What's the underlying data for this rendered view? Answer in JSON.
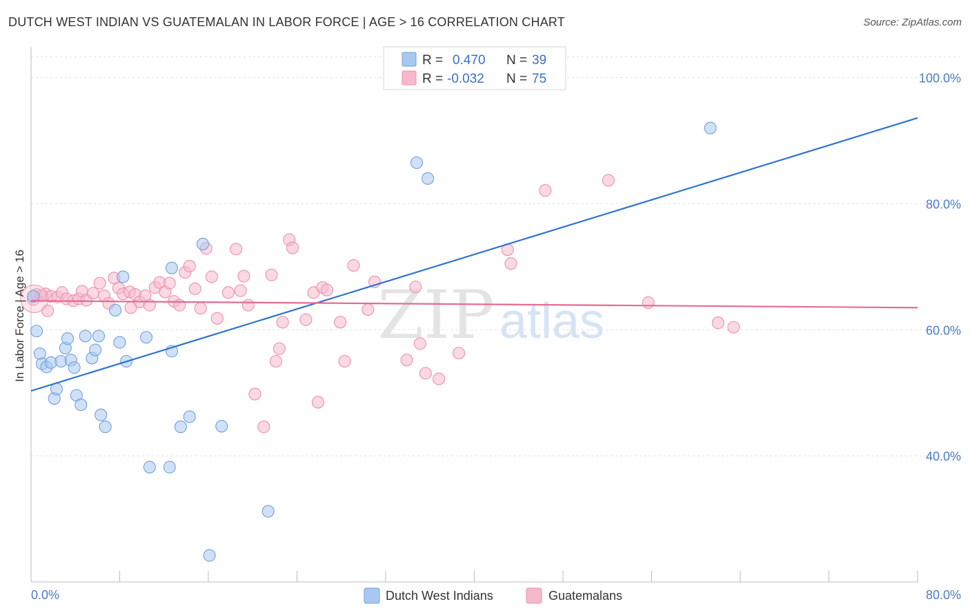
{
  "title": "DUTCH WEST INDIAN VS GUATEMALAN IN LABOR FORCE | AGE > 16 CORRELATION CHART",
  "source": "Source: ZipAtlas.com",
  "watermark": {
    "zip": "ZIP",
    "atlas": "atlas"
  },
  "colors": {
    "blue_fill": "#a9c8f0",
    "blue_stroke": "#6f9fdc",
    "blue_line": "#2f72d0",
    "pink_fill": "#f6b9cc",
    "pink_stroke": "#ec8fad",
    "pink_line": "#e56b93",
    "tick_text": "#4a7bc8",
    "grid": "#dddddd"
  },
  "legend": {
    "rows": [
      {
        "r_label": "R =",
        "r_value": "0.470",
        "n_label": "N =",
        "n_value": "39",
        "series": "blue"
      },
      {
        "r_label": "R =",
        "r_value": "-0.032",
        "n_label": "N =",
        "n_value": "75",
        "series": "pink"
      }
    ]
  },
  "bottom_legend": [
    {
      "label": "Dutch West Indians",
      "series": "blue"
    },
    {
      "label": "Guatemalans",
      "series": "pink"
    }
  ],
  "chart_data": {
    "type": "scatter",
    "title": "DUTCH WEST INDIAN VS GUATEMALAN IN LABOR FORCE | AGE > 16 CORRELATION CHART",
    "xlabel": "",
    "ylabel": "In Labor Force | Age > 16",
    "xlim": [
      0,
      80
    ],
    "ylim": [
      20,
      104
    ],
    "x_tick_labels": [
      {
        "value": 0,
        "label": "0.0%"
      },
      {
        "value": 80,
        "label": "80.0%"
      }
    ],
    "x_minor_ticks": [
      8,
      16,
      24,
      32,
      40,
      48,
      56,
      64,
      72,
      80
    ],
    "y_ticks": [
      {
        "value": 40,
        "label": "40.0%"
      },
      {
        "value": 60,
        "label": "60.0%"
      },
      {
        "value": 80,
        "label": "80.0%"
      },
      {
        "value": 100,
        "label": "100.0%"
      }
    ],
    "series": [
      {
        "name": "Dutch West Indians",
        "color": "blue",
        "R": 0.47,
        "N": 39,
        "trend": {
          "x": [
            0,
            80
          ],
          "y": [
            50.3,
            93.6
          ]
        },
        "points": [
          [
            0.2,
            65.3
          ],
          [
            0.5,
            59.8
          ],
          [
            0.8,
            56.2
          ],
          [
            1.0,
            54.6
          ],
          [
            1.4,
            54.1
          ],
          [
            1.8,
            54.8
          ],
          [
            2.1,
            49.1
          ],
          [
            2.3,
            50.6
          ],
          [
            2.7,
            55.0
          ],
          [
            3.1,
            57.1
          ],
          [
            3.3,
            58.6
          ],
          [
            3.6,
            55.2
          ],
          [
            3.9,
            54.0
          ],
          [
            4.1,
            49.6
          ],
          [
            4.5,
            48.1
          ],
          [
            4.9,
            59.0
          ],
          [
            5.5,
            55.5
          ],
          [
            5.8,
            56.8
          ],
          [
            6.1,
            59.0
          ],
          [
            6.3,
            46.5
          ],
          [
            6.7,
            44.6
          ],
          [
            7.6,
            63.1
          ],
          [
            8.0,
            58.0
          ],
          [
            8.3,
            68.4
          ],
          [
            8.6,
            55.0
          ],
          [
            10.4,
            58.8
          ],
          [
            10.7,
            38.2
          ],
          [
            12.5,
            38.2
          ],
          [
            12.7,
            56.6
          ],
          [
            12.7,
            69.8
          ],
          [
            13.5,
            44.6
          ],
          [
            14.3,
            46.2
          ],
          [
            15.5,
            73.6
          ],
          [
            16.1,
            24.2
          ],
          [
            17.2,
            44.7
          ],
          [
            21.4,
            31.2
          ],
          [
            34.8,
            86.5
          ],
          [
            35.8,
            84.0
          ],
          [
            61.3,
            92.0
          ]
        ]
      },
      {
        "name": "Guatemalans",
        "color": "pink",
        "R": -0.032,
        "N": 75,
        "trend": {
          "x": [
            0,
            80
          ],
          "y": [
            64.6,
            63.5
          ]
        },
        "points": [
          [
            0.2,
            64.8
          ],
          [
            0.5,
            65.6
          ],
          [
            0.9,
            65.4
          ],
          [
            1.3,
            65.7
          ],
          [
            1.8,
            65.3
          ],
          [
            2.4,
            65.2
          ],
          [
            2.8,
            65.9
          ],
          [
            3.2,
            64.9
          ],
          [
            3.8,
            64.6
          ],
          [
            4.3,
            64.9
          ],
          [
            4.6,
            66.1
          ],
          [
            5.0,
            64.7
          ],
          [
            5.6,
            65.8
          ],
          [
            6.2,
            67.4
          ],
          [
            6.6,
            65.4
          ],
          [
            7.0,
            64.2
          ],
          [
            7.5,
            68.2
          ],
          [
            7.9,
            66.6
          ],
          [
            8.3,
            65.7
          ],
          [
            8.9,
            66.0
          ],
          [
            9.4,
            65.6
          ],
          [
            9.8,
            64.4
          ],
          [
            10.3,
            65.4
          ],
          [
            10.7,
            63.9
          ],
          [
            11.2,
            66.7
          ],
          [
            11.6,
            67.5
          ],
          [
            12.1,
            66.0
          ],
          [
            12.5,
            67.4
          ],
          [
            12.9,
            64.5
          ],
          [
            13.4,
            63.9
          ],
          [
            13.9,
            69.1
          ],
          [
            14.3,
            70.1
          ],
          [
            14.8,
            66.5
          ],
          [
            15.3,
            63.4
          ],
          [
            15.8,
            72.9
          ],
          [
            16.3,
            68.4
          ],
          [
            16.8,
            61.8
          ],
          [
            17.8,
            65.9
          ],
          [
            18.5,
            72.8
          ],
          [
            18.9,
            66.2
          ],
          [
            19.2,
            68.5
          ],
          [
            19.6,
            63.9
          ],
          [
            20.2,
            49.8
          ],
          [
            21.0,
            44.6
          ],
          [
            21.7,
            68.7
          ],
          [
            22.1,
            55.0
          ],
          [
            22.4,
            57.0
          ],
          [
            22.7,
            61.2
          ],
          [
            23.3,
            74.3
          ],
          [
            23.6,
            73.0
          ],
          [
            24.8,
            61.6
          ],
          [
            25.5,
            65.9
          ],
          [
            25.9,
            48.5
          ],
          [
            26.3,
            66.7
          ],
          [
            26.7,
            66.3
          ],
          [
            27.9,
            61.2
          ],
          [
            28.3,
            55.0
          ],
          [
            29.1,
            70.2
          ],
          [
            30.4,
            63.2
          ],
          [
            31.0,
            67.6
          ],
          [
            33.9,
            55.2
          ],
          [
            34.7,
            66.8
          ],
          [
            35.1,
            57.8
          ],
          [
            35.6,
            53.1
          ],
          [
            36.8,
            52.2
          ],
          [
            38.6,
            56.3
          ],
          [
            43.0,
            72.7
          ],
          [
            43.3,
            70.5
          ],
          [
            46.4,
            82.1
          ],
          [
            52.1,
            83.7
          ],
          [
            55.7,
            64.3
          ],
          [
            62.0,
            61.1
          ],
          [
            63.4,
            60.4
          ],
          [
            1.5,
            63.0
          ],
          [
            9.0,
            63.5
          ]
        ]
      }
    ]
  }
}
